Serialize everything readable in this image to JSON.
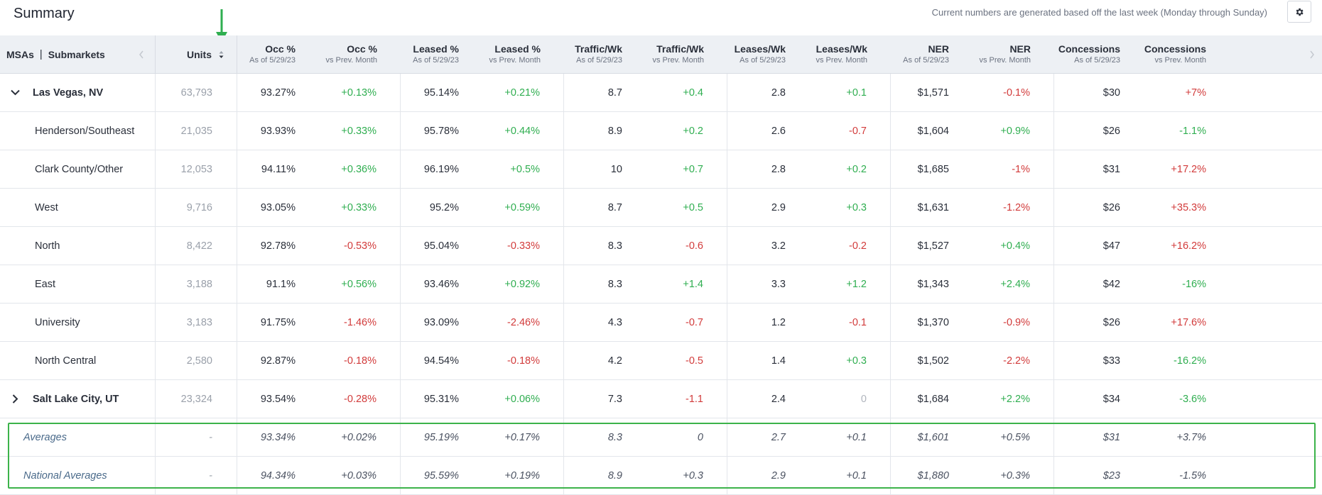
{
  "header": {
    "title": "Summary",
    "note": "Current numbers are generated based off the last week (Monday through Sunday)"
  },
  "table": {
    "name_header": {
      "msas": "MSAs",
      "separator": "|",
      "submarkets": "Submarkets"
    },
    "units_header": "Units",
    "columns": [
      {
        "label": "Occ %",
        "sub": "As of 5/29/23"
      },
      {
        "label": "Occ %",
        "sub": "vs Prev. Month"
      },
      {
        "label": "Leased %",
        "sub": "As of 5/29/23"
      },
      {
        "label": "Leased %",
        "sub": "vs Prev. Month"
      },
      {
        "label": "Traffic/Wk",
        "sub": "As of 5/29/23"
      },
      {
        "label": "Traffic/Wk",
        "sub": "vs Prev. Month"
      },
      {
        "label": "Leases/Wk",
        "sub": "As of 5/29/23"
      },
      {
        "label": "Leases/Wk",
        "sub": "vs Prev. Month"
      },
      {
        "label": "NER",
        "sub": "As of 5/29/23"
      },
      {
        "label": "NER",
        "sub": "vs Prev. Month"
      },
      {
        "label": "Concessions",
        "sub": "As of 5/29/23"
      },
      {
        "label": "Concessions",
        "sub": "vs Prev. Month"
      }
    ],
    "rows": [
      {
        "type": "msa",
        "expanded": true,
        "name": "Las Vegas, NV",
        "units": "63,793",
        "cells": [
          "93.27%",
          "+0.13%",
          "95.14%",
          "+0.21%",
          "8.7",
          "+0.4",
          "2.8",
          "+0.1",
          "$1,571",
          "-0.1%",
          "$30",
          "+7%"
        ],
        "tones": [
          "",
          "pos",
          "",
          "pos",
          "",
          "pos",
          "",
          "pos",
          "",
          "neg",
          "",
          "neg"
        ]
      },
      {
        "type": "sub",
        "name": "Henderson/Southeast",
        "units": "21,035",
        "cells": [
          "93.93%",
          "+0.33%",
          "95.78%",
          "+0.44%",
          "8.9",
          "+0.2",
          "2.6",
          "-0.7",
          "$1,604",
          "+0.9%",
          "$26",
          "-1.1%"
        ],
        "tones": [
          "",
          "pos",
          "",
          "pos",
          "",
          "pos",
          "",
          "neg",
          "",
          "pos",
          "",
          "pos"
        ]
      },
      {
        "type": "sub",
        "name": "Clark County/Other",
        "units": "12,053",
        "cells": [
          "94.11%",
          "+0.36%",
          "96.19%",
          "+0.5%",
          "10",
          "+0.7",
          "2.8",
          "+0.2",
          "$1,685",
          "-1%",
          "$31",
          "+17.2%"
        ],
        "tones": [
          "",
          "pos",
          "",
          "pos",
          "",
          "pos",
          "",
          "pos",
          "",
          "neg",
          "",
          "neg"
        ]
      },
      {
        "type": "sub",
        "name": "West",
        "units": "9,716",
        "cells": [
          "93.05%",
          "+0.33%",
          "95.2%",
          "+0.59%",
          "8.7",
          "+0.5",
          "2.9",
          "+0.3",
          "$1,631",
          "-1.2%",
          "$26",
          "+35.3%"
        ],
        "tones": [
          "",
          "pos",
          "",
          "pos",
          "",
          "pos",
          "",
          "pos",
          "",
          "neg",
          "",
          "neg"
        ]
      },
      {
        "type": "sub",
        "name": "North",
        "units": "8,422",
        "cells": [
          "92.78%",
          "-0.53%",
          "95.04%",
          "-0.33%",
          "8.3",
          "-0.6",
          "3.2",
          "-0.2",
          "$1,527",
          "+0.4%",
          "$47",
          "+16.2%"
        ],
        "tones": [
          "",
          "neg",
          "",
          "neg",
          "",
          "neg",
          "",
          "neg",
          "",
          "pos",
          "",
          "neg"
        ]
      },
      {
        "type": "sub",
        "name": "East",
        "units": "3,188",
        "cells": [
          "91.1%",
          "+0.56%",
          "93.46%",
          "+0.92%",
          "8.3",
          "+1.4",
          "3.3",
          "+1.2",
          "$1,343",
          "+2.4%",
          "$42",
          "-16%"
        ],
        "tones": [
          "",
          "pos",
          "",
          "pos",
          "",
          "pos",
          "",
          "pos",
          "",
          "pos",
          "",
          "pos"
        ]
      },
      {
        "type": "sub",
        "name": "University",
        "units": "3,183",
        "cells": [
          "91.75%",
          "-1.46%",
          "93.09%",
          "-2.46%",
          "4.3",
          "-0.7",
          "1.2",
          "-0.1",
          "$1,370",
          "-0.9%",
          "$26",
          "+17.6%"
        ],
        "tones": [
          "",
          "neg",
          "",
          "neg",
          "",
          "neg",
          "",
          "neg",
          "",
          "neg",
          "",
          "neg"
        ]
      },
      {
        "type": "sub",
        "name": "North Central",
        "units": "2,580",
        "cells": [
          "92.87%",
          "-0.18%",
          "94.54%",
          "-0.18%",
          "4.2",
          "-0.5",
          "1.4",
          "+0.3",
          "$1,502",
          "-2.2%",
          "$33",
          "-16.2%"
        ],
        "tones": [
          "",
          "neg",
          "",
          "neg",
          "",
          "neg",
          "",
          "pos",
          "",
          "neg",
          "",
          "pos"
        ]
      },
      {
        "type": "msa",
        "expanded": false,
        "name": "Salt Lake City, UT",
        "units": "23,324",
        "cells": [
          "93.54%",
          "-0.28%",
          "95.31%",
          "+0.06%",
          "7.3",
          "-1.1",
          "2.4",
          "0",
          "$1,684",
          "+2.2%",
          "$34",
          "-3.6%"
        ],
        "tones": [
          "",
          "neg",
          "",
          "pos",
          "",
          "neg",
          "",
          "zero",
          "",
          "pos",
          "",
          "pos"
        ]
      },
      {
        "type": "avg",
        "name": "Averages",
        "units": "-",
        "cells": [
          "93.34%",
          "+0.02%",
          "95.19%",
          "+0.17%",
          "8.3",
          "0",
          "2.7",
          "+0.1",
          "$1,601",
          "+0.5%",
          "$31",
          "+3.7%"
        ],
        "tones": [
          "",
          "pos",
          "",
          "pos",
          "",
          "zero",
          "",
          "pos",
          "",
          "pos",
          "",
          "neg"
        ]
      },
      {
        "type": "avg",
        "name": "National Averages",
        "units": "-",
        "cells": [
          "94.34%",
          "+0.03%",
          "95.59%",
          "+0.19%",
          "8.9",
          "+0.3",
          "2.9",
          "+0.1",
          "$1,880",
          "+0.3%",
          "$23",
          "-1.5%"
        ],
        "tones": [
          "",
          "pos",
          "",
          "pos",
          "",
          "pos",
          "",
          "pos",
          "",
          "pos",
          "",
          "pos"
        ]
      }
    ]
  },
  "colors": {
    "positive": "#2fae50",
    "negative": "#d23b3b",
    "highlight": "#3cb34a",
    "header_bg": "#edf0f4"
  },
  "icons": {
    "settings": "gear-icon",
    "sort": "sort-icon",
    "annotation": "green-arrow-icon"
  }
}
